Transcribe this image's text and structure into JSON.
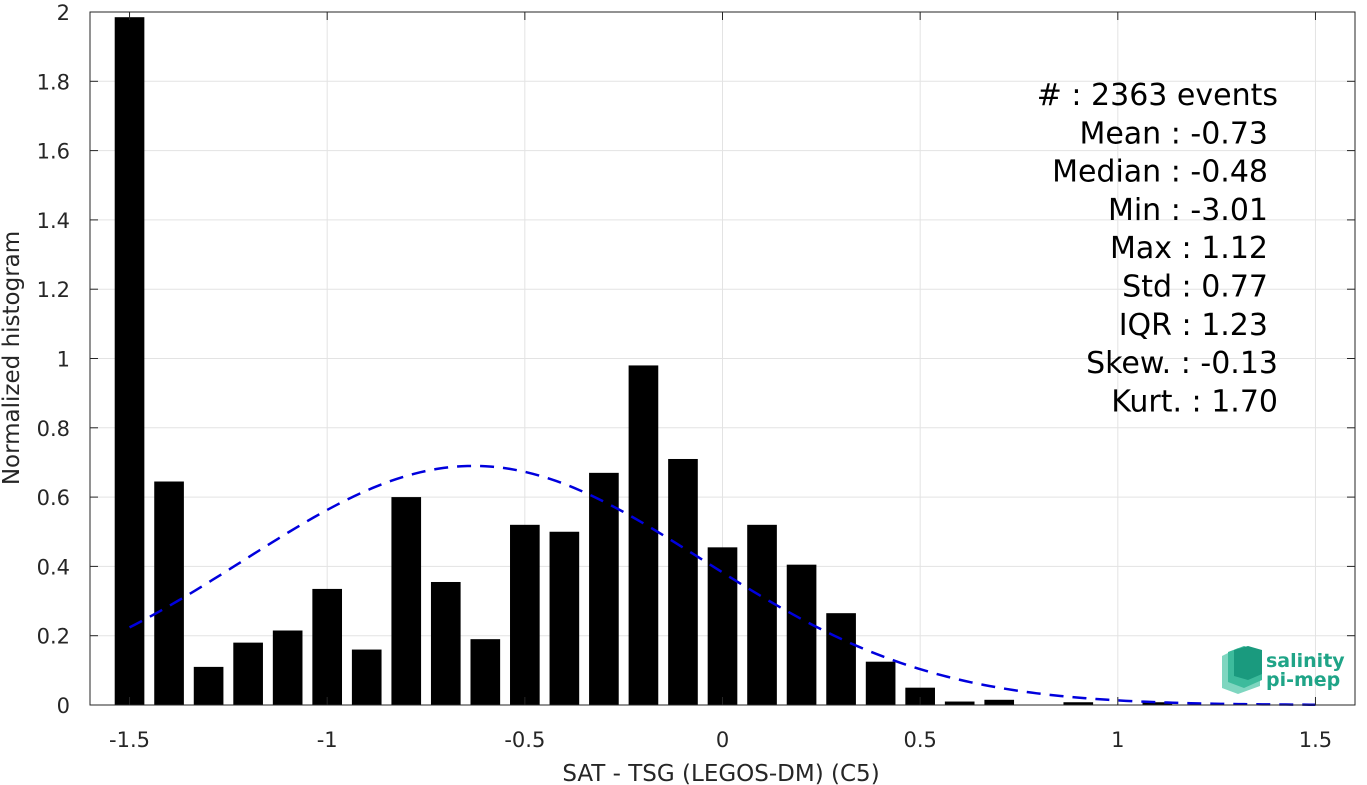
{
  "chart_data": {
    "type": "bar",
    "xlabel": "SAT - TSG (LEGOS-DM) (C5)",
    "ylabel": "Normalized histogram",
    "xlim": [
      -1.6,
      1.6
    ],
    "ylim": [
      0,
      2
    ],
    "xticks": [
      -1.5,
      -1,
      -0.5,
      0,
      0.5,
      1,
      1.5
    ],
    "xtick_labels": [
      "-1.5",
      "-1",
      "-0.5",
      "0",
      "0.5",
      "1",
      "1.5"
    ],
    "yticks": [
      0,
      0.2,
      0.4,
      0.6,
      0.8,
      1,
      1.2,
      1.4,
      1.6,
      1.8,
      2
    ],
    "ytick_labels": [
      "0",
      "0.2",
      "0.4",
      "0.6",
      "0.8",
      "1",
      "1.2",
      "1.4",
      "1.6",
      "1.8",
      "2"
    ],
    "grid": true,
    "bar_color": "#000000",
    "bar_width": 0.075,
    "bars": [
      {
        "x": -1.5,
        "y": 1.985
      },
      {
        "x": -1.4,
        "y": 0.645
      },
      {
        "x": -1.3,
        "y": 0.11
      },
      {
        "x": -1.2,
        "y": 0.18
      },
      {
        "x": -1.1,
        "y": 0.215
      },
      {
        "x": -1.0,
        "y": 0.335
      },
      {
        "x": -0.9,
        "y": 0.16
      },
      {
        "x": -0.8,
        "y": 0.6
      },
      {
        "x": -0.7,
        "y": 0.355
      },
      {
        "x": -0.6,
        "y": 0.19
      },
      {
        "x": -0.5,
        "y": 0.52
      },
      {
        "x": -0.4,
        "y": 0.5
      },
      {
        "x": -0.3,
        "y": 0.67
      },
      {
        "x": -0.2,
        "y": 0.98
      },
      {
        "x": -0.1,
        "y": 0.71
      },
      {
        "x": 0.0,
        "y": 0.455
      },
      {
        "x": 0.1,
        "y": 0.52
      },
      {
        "x": 0.2,
        "y": 0.405
      },
      {
        "x": 0.3,
        "y": 0.265
      },
      {
        "x": 0.4,
        "y": 0.125
      },
      {
        "x": 0.5,
        "y": 0.05
      },
      {
        "x": 0.6,
        "y": 0.01
      },
      {
        "x": 0.7,
        "y": 0.015
      },
      {
        "x": 0.8,
        "y": 0.0
      },
      {
        "x": 0.9,
        "y": 0.008
      },
      {
        "x": 1.0,
        "y": 0.0
      },
      {
        "x": 1.1,
        "y": 0.008
      }
    ],
    "fit_curve": {
      "type": "gaussian",
      "mean": -0.63,
      "peak": 0.69,
      "sigma": 0.58,
      "x_range": [
        -1.5,
        1.5
      ],
      "color": "#0000dd",
      "style": "dashed"
    },
    "stats_lines": [
      "#  : 2363 events",
      "Mean : -0.73",
      "Median : -0.48",
      "Min : -3.01",
      "Max : 1.12",
      "Std : 0.77",
      "IQR : 1.23",
      "Skew. : -0.13",
      "Kurt. : 1.70"
    ]
  },
  "logo": {
    "line1": "salinity",
    "line2": "pi-mep",
    "color": "#1fa487"
  }
}
